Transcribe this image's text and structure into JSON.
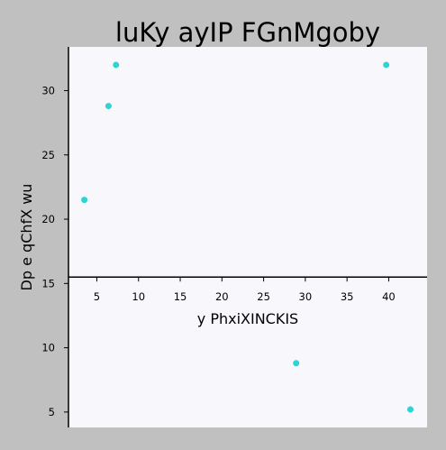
{
  "chart_data": {
    "type": "scatter",
    "title": "luKy ayIP FGnMgoby",
    "xlabel": "y PhxiXINCKIS",
    "ylabel": "Dp  e qChfX wu",
    "xlim": [
      1.6,
      44.6
    ],
    "ylim": [
      3.8,
      33.4
    ],
    "x_axis_crosses_at_y": 15.5,
    "xticks": [
      5,
      10,
      15,
      20,
      25,
      30,
      35,
      40
    ],
    "yticks": [
      5,
      10,
      15,
      20,
      25,
      30
    ],
    "grid": false,
    "colors": {
      "figure_background": "#c0c0c0",
      "plot_background": "#f8f8fc",
      "marker": "#2ed4d4",
      "axis": "#000000"
    },
    "series": [
      {
        "x": [
          3.5,
          6.4,
          7.3,
          39.7,
          28.9,
          42.6
        ],
        "y": [
          21.5,
          28.8,
          32.0,
          32.0,
          8.8,
          5.2
        ]
      }
    ]
  }
}
